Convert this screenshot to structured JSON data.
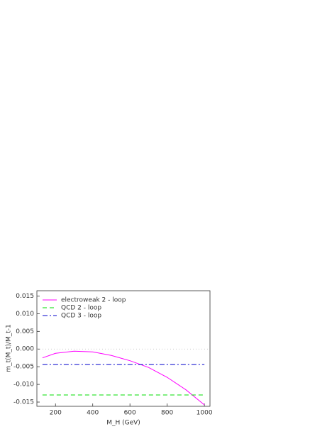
{
  "chart_data": {
    "type": "line",
    "xlabel": "M_H (GeV)",
    "ylabel": "m_t(M_t)/M_t-1",
    "x": [
      130,
      200,
      300,
      400,
      500,
      600,
      700,
      800,
      900,
      1000
    ],
    "series": [
      {
        "name": "electroweak 2 - loop",
        "color": "#ff00ff",
        "dash": "solid",
        "values": [
          -0.0025,
          -0.0012,
          -0.0006,
          -0.0008,
          -0.0018,
          -0.0033,
          -0.0052,
          -0.008,
          -0.0115,
          -0.0158
        ]
      },
      {
        "name": "QCD 2 - loop",
        "color": "#00dd00",
        "dash": "dashed",
        "values": [
          -0.013,
          -0.013,
          -0.013,
          -0.013,
          -0.013,
          -0.013,
          -0.013,
          -0.013,
          -0.013,
          -0.013
        ]
      },
      {
        "name": "QCD 3 - loop",
        "color": "#0000cc",
        "dash": "dashdot",
        "values": [
          -0.0044,
          -0.0044,
          -0.0044,
          -0.0044,
          -0.0044,
          -0.0044,
          -0.0044,
          -0.0044,
          -0.0044,
          -0.0044
        ]
      }
    ],
    "reference_line": 0,
    "xlim": [
      100,
      1030
    ],
    "ylim": [
      -0.0162,
      0.0165
    ],
    "xticks": [
      200,
      400,
      600,
      800,
      1000
    ],
    "yticks": [
      {
        "value": -0.015,
        "label": "-0.015"
      },
      {
        "value": -0.01,
        "label": "-0.010"
      },
      {
        "value": -0.005,
        "label": "-0.005"
      },
      {
        "value": 0,
        "label": "0.000"
      },
      {
        "value": 0.005,
        "label": "0.005"
      },
      {
        "value": 0.01,
        "label": "0.010"
      },
      {
        "value": 0.015,
        "label": "0.015"
      }
    ],
    "legend": "upper left"
  }
}
